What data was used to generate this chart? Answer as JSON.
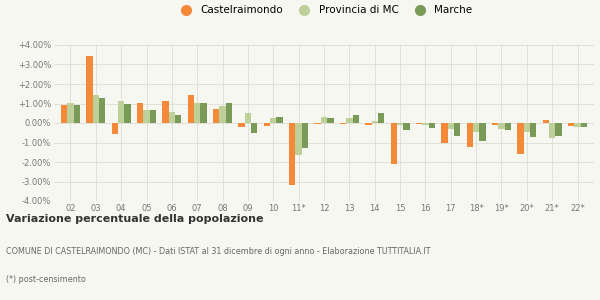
{
  "years": [
    "02",
    "03",
    "04",
    "05",
    "06",
    "07",
    "08",
    "09",
    "10",
    "11*",
    "12",
    "13",
    "14",
    "15",
    "16",
    "17",
    "18*",
    "19*",
    "20*",
    "21*",
    "22*"
  ],
  "castelraimondo": [
    0.9,
    3.45,
    -0.55,
    1.05,
    1.15,
    1.45,
    0.7,
    -0.2,
    -0.15,
    -3.2,
    -0.05,
    -0.05,
    -0.1,
    -2.1,
    -0.05,
    -1.05,
    -1.25,
    -0.1,
    -1.6,
    0.15,
    -0.15
  ],
  "provincia_mc": [
    1.05,
    1.45,
    1.15,
    0.65,
    0.55,
    1.05,
    0.85,
    0.5,
    0.25,
    -1.65,
    0.3,
    0.25,
    0.1,
    -0.1,
    -0.1,
    -0.3,
    -0.45,
    -0.3,
    -0.45,
    -0.75,
    -0.2
  ],
  "marche": [
    0.9,
    1.3,
    0.95,
    0.65,
    0.4,
    1.05,
    1.05,
    -0.5,
    0.3,
    -1.3,
    0.25,
    0.4,
    0.5,
    -0.35,
    -0.25,
    -0.65,
    -0.9,
    -0.35,
    -0.7,
    -0.65,
    -0.2
  ],
  "color_castelraimondo": "#f4893a",
  "color_provincia": "#bdd09a",
  "color_marche": "#7a9a58",
  "bg_color": "#f7f7f2",
  "ylim": [
    -4.0,
    4.0
  ],
  "yticks": [
    -4.0,
    -3.0,
    -2.0,
    -1.0,
    0.0,
    1.0,
    2.0,
    3.0,
    4.0
  ],
  "title": "Variazione percentuale della popolazione",
  "subtitle": "COMUNE DI CASTELRAIMONDO (MC) - Dati ISTAT al 31 dicembre di ogni anno - Elaborazione TUTTITALIA.IT",
  "footnote": "(*) post-censimento",
  "legend_labels": [
    "Castelraimondo",
    "Provincia di MC",
    "Marche"
  ]
}
